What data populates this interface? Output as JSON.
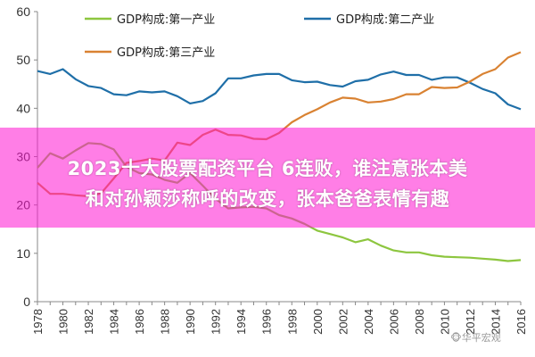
{
  "chart_data": {
    "type": "line",
    "title": "",
    "xlabel": "",
    "ylabel": "",
    "x": [
      1978,
      1979,
      1980,
      1981,
      1982,
      1983,
      1984,
      1985,
      1986,
      1987,
      1988,
      1989,
      1990,
      1991,
      1992,
      1993,
      1994,
      1995,
      1996,
      1997,
      1998,
      1999,
      2000,
      2001,
      2002,
      2003,
      2004,
      2005,
      2006,
      2007,
      2008,
      2009,
      2010,
      2011,
      2012,
      2013,
      2014,
      2015,
      2016
    ],
    "xlim": [
      1978,
      2016
    ],
    "ylim": [
      0,
      60
    ],
    "yticks": [
      0,
      10,
      20,
      30,
      40,
      50,
      60
    ],
    "xticks": [
      1978,
      1980,
      1982,
      1984,
      1986,
      1988,
      1990,
      1992,
      1994,
      1996,
      1998,
      2000,
      2002,
      2004,
      2006,
      2008,
      2010,
      2012,
      2014,
      2016
    ],
    "grid": false,
    "legend_position": "top",
    "series": [
      {
        "name": "GDP构成:第一产业",
        "color": "#8dc63f",
        "values": [
          27.7,
          30.7,
          29.6,
          31.3,
          32.8,
          32.6,
          31.5,
          27.9,
          26.6,
          26.3,
          25.2,
          24.6,
          26.6,
          24.0,
          21.3,
          19.3,
          19.5,
          19.6,
          19.3,
          17.9,
          17.2,
          16.1,
          14.7,
          14.0,
          13.3,
          12.3,
          12.9,
          11.6,
          10.6,
          10.2,
          10.2,
          9.6,
          9.3,
          9.2,
          9.1,
          8.9,
          8.7,
          8.4,
          8.6
        ]
      },
      {
        "name": "GDP构成:第二产业",
        "color": "#1f6fa8",
        "values": [
          47.7,
          47.1,
          48.1,
          46.0,
          44.6,
          44.2,
          42.9,
          42.7,
          43.5,
          43.3,
          43.5,
          42.5,
          41.0,
          41.5,
          43.1,
          46.2,
          46.2,
          46.8,
          47.1,
          47.1,
          45.8,
          45.4,
          45.5,
          44.8,
          44.5,
          45.6,
          45.9,
          47.0,
          47.6,
          46.9,
          46.9,
          45.9,
          46.4,
          46.4,
          45.3,
          44.0,
          43.1,
          40.8,
          39.8
        ]
      },
      {
        "name": "GDP构成:第三产业",
        "color": "#d98232",
        "values": [
          24.6,
          22.3,
          22.3,
          22.0,
          21.8,
          22.4,
          25.5,
          28.7,
          29.1,
          29.6,
          29.2,
          32.9,
          32.4,
          34.5,
          35.6,
          34.5,
          34.4,
          33.7,
          33.6,
          34.9,
          37.1,
          38.6,
          39.8,
          41.2,
          42.2,
          42.0,
          41.2,
          41.4,
          41.9,
          42.9,
          42.9,
          44.4,
          44.2,
          44.3,
          45.5,
          47.1,
          48.1,
          50.5,
          51.6
        ]
      }
    ]
  },
  "overlay": {
    "line1": "2023十大股票配资平台 6连败，谁注意张本美",
    "line2": "和对孙颖莎称呼的改变，张本爸爸表情有趣"
  },
  "watermark": "🐵华平宏观"
}
